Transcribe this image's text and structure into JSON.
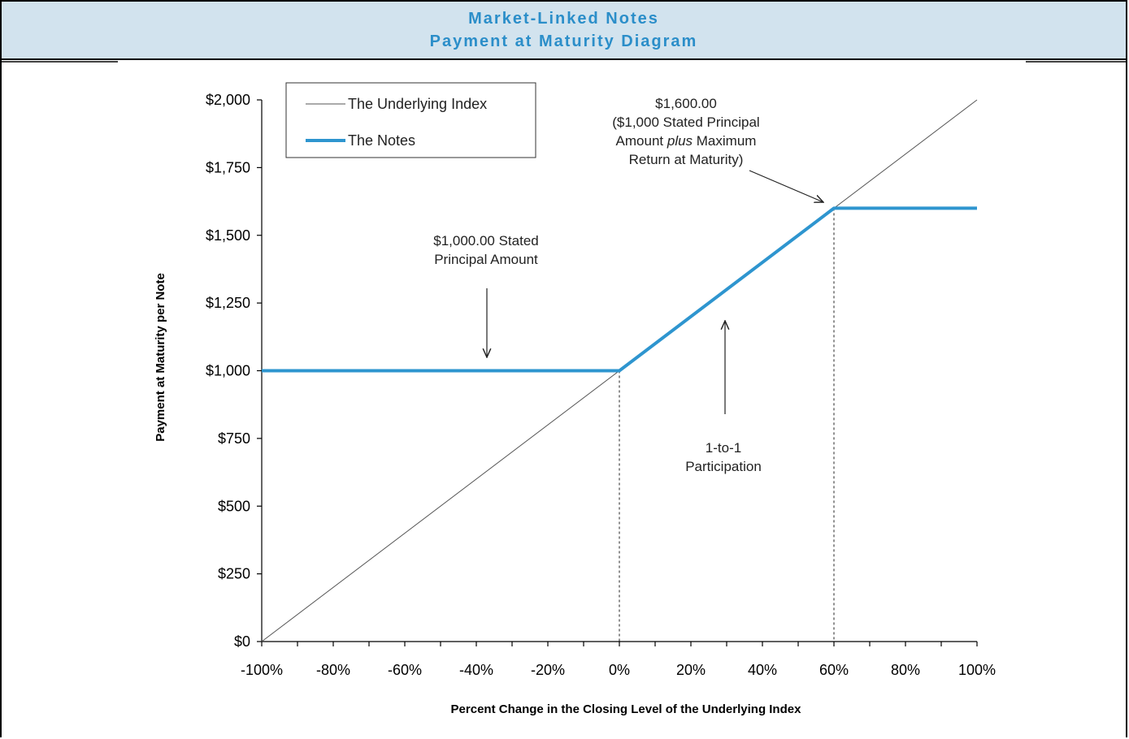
{
  "header": {
    "line1": "Market-Linked Notes",
    "line2": "Payment at Maturity Diagram"
  },
  "chart_data": {
    "type": "line",
    "xlabel": "Percent Change in the Closing Level of the Underlying Index",
    "ylabel": "Payment at Maturity per Note",
    "xlim": [
      -100,
      100
    ],
    "ylim": [
      0,
      2000
    ],
    "x_ticks": [
      -100,
      -80,
      -60,
      -40,
      -20,
      0,
      20,
      40,
      60,
      80,
      100
    ],
    "x_tick_labels": [
      "-100%",
      "-80%",
      "-60%",
      "-40%",
      "-20%",
      "0%",
      "20%",
      "40%",
      "60%",
      "80%",
      "100%"
    ],
    "y_ticks": [
      0,
      250,
      500,
      750,
      1000,
      1250,
      1500,
      1750,
      2000
    ],
    "y_tick_labels": [
      "$0",
      "$250",
      "$500",
      "$750",
      "$1,000",
      "$1,250",
      "$1,500",
      "$1,750",
      "$2,000"
    ],
    "legend_position": "top-left",
    "grid": false,
    "series": [
      {
        "name": "The Underlying Index",
        "color": "#555555",
        "x": [
          -100,
          100
        ],
        "y": [
          0,
          2000
        ]
      },
      {
        "name": "The Notes",
        "color": "#2e95cf",
        "x": [
          -100,
          0,
          60,
          100
        ],
        "y": [
          1000,
          1000,
          1600,
          1600
        ]
      }
    ],
    "annotations": [
      {
        "lines": [
          "$1,000.00 Stated",
          "Principal Amount"
        ]
      },
      {
        "lines": [
          "$1,600.00",
          "($1,000 Stated Principal",
          "Amount plus Maximum",
          "Return at Maturity)"
        ]
      },
      {
        "lines": [
          "1-to-1",
          "Participation"
        ]
      }
    ]
  }
}
